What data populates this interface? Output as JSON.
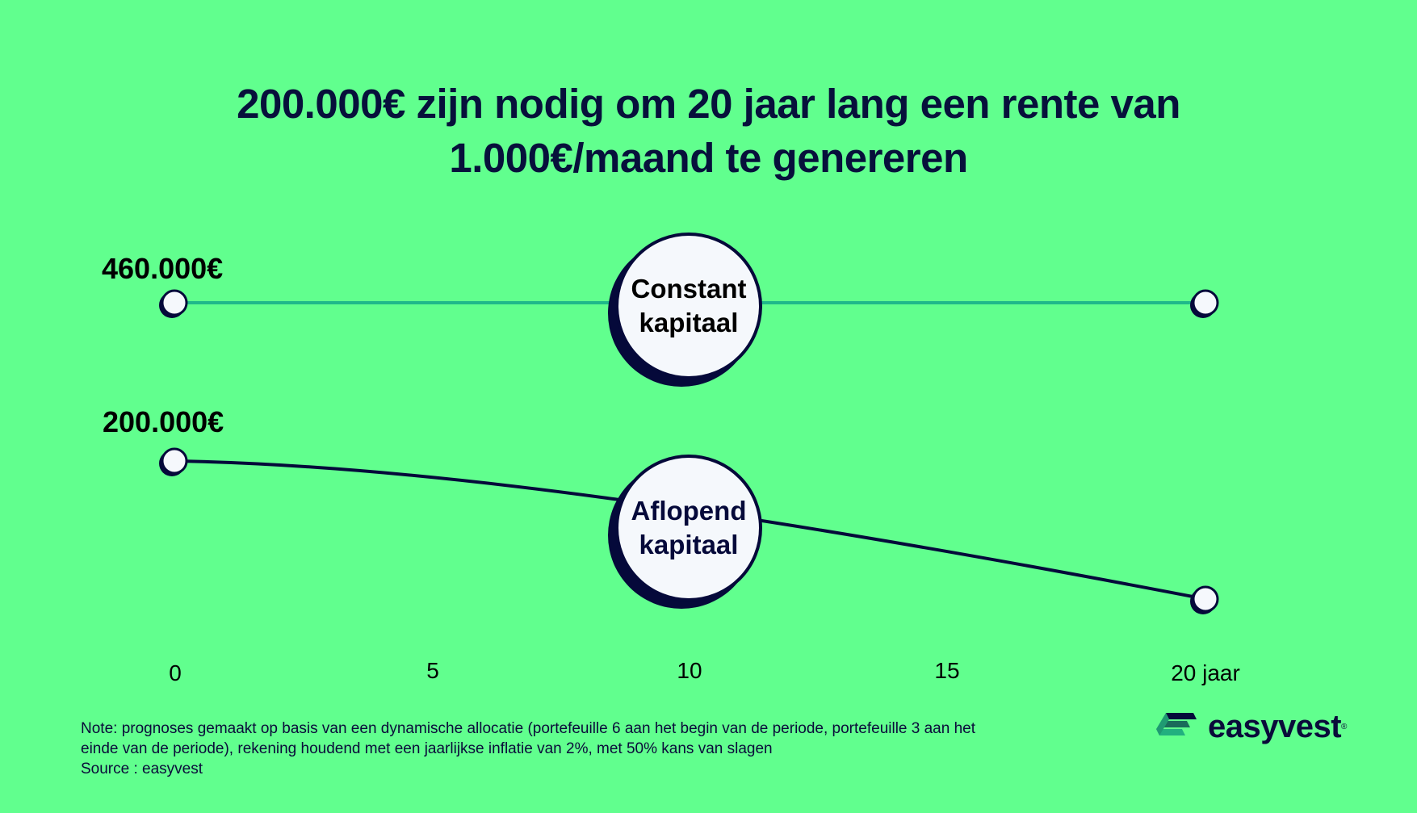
{
  "title_lines": [
    "200.000€ zijn nodig om 20 jaar lang een rente van",
    "1.000€/maand te genereren"
  ],
  "chart_data": {
    "type": "line",
    "x": [
      0,
      20
    ],
    "xticks": [
      "0",
      "5",
      "10",
      "15",
      "20 jaar"
    ],
    "xlim": [
      0,
      20
    ],
    "grid": false,
    "series": [
      {
        "name": "Constant kapitaal",
        "start_label": "460.000€",
        "values": [
          460000,
          460000
        ],
        "color": "#1fb98a"
      },
      {
        "name": "Aflopend kapitaal",
        "start_label": "200.000€",
        "values": [
          200000,
          0
        ],
        "color": "#05093a"
      }
    ]
  },
  "bubbles": [
    {
      "line1": "Constant",
      "line2": "kapitaal"
    },
    {
      "line1": "Aflopend",
      "line2": "kapitaal"
    }
  ],
  "note": {
    "line1": "Note: prognoses gemaakt op basis van een dynamische allocatie (portefeuille 6 aan het begin van de periode, portefeuille 3 aan het",
    "line2": "einde van de periode), rekening houdend met een jaarlijkse inflatie van 2%, met 50% kans van slagen",
    "source": "Source : easyvest"
  },
  "logo": {
    "text": "easyvest",
    "mark": "®"
  }
}
